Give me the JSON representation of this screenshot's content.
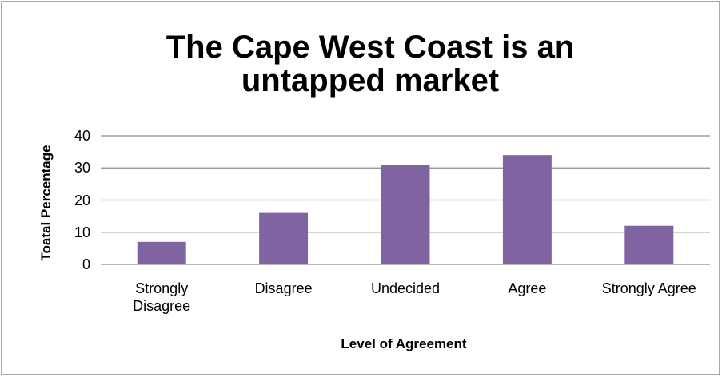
{
  "chart_data": {
    "type": "bar",
    "title": "The Cape West Coast is an untapped market",
    "categories": [
      "Strongly Disagree",
      "Disagree",
      "Undecided",
      "Agree",
      "Strongly Agree"
    ],
    "values": [
      7,
      16,
      31,
      34,
      12
    ],
    "color": "#8064a2",
    "ylim": [
      0,
      40
    ],
    "yticks": [
      0,
      10,
      20,
      30,
      40
    ],
    "grid": true,
    "x_label": "Level of Agreement",
    "y_label": "Toatal Percentage"
  }
}
